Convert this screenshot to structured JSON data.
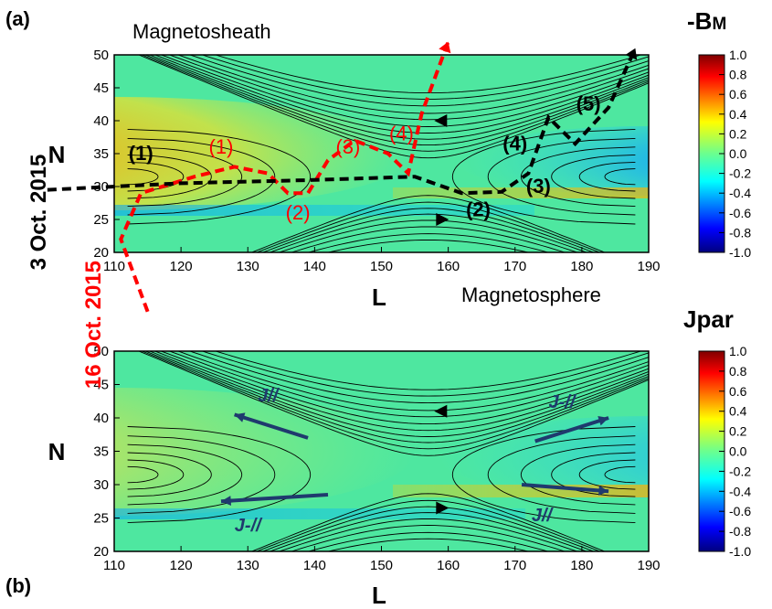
{
  "panels": [
    {
      "id": "a",
      "panel_label": "(a)",
      "xlabel": "L",
      "ylabel": "N",
      "colorbar_label": "-B",
      "colorbar_label_sub": "M",
      "region_top": "Magnetosheath",
      "region_bottom": "Magnetosphere"
    },
    {
      "id": "b",
      "panel_label": "(b)",
      "xlabel": "L",
      "ylabel": "N",
      "colorbar_label": "Jpar"
    }
  ],
  "events": [
    {
      "date": "3 Oct. 2015",
      "color": "#000000"
    },
    {
      "date": "16 Oct. 2015",
      "color": "#ff0000"
    }
  ],
  "current_labels": [
    "J//",
    "J-//",
    "J-//",
    "J//"
  ],
  "colors": {
    "red_track": "#ff0000",
    "black_track": "#000000",
    "arrow_navy": "#1f3a6e"
  },
  "chart_data": [
    {
      "type": "heatmap",
      "panel": "a",
      "x_range": [
        110,
        190
      ],
      "y_range": [
        20,
        50
      ],
      "x_ticks": [
        110,
        120,
        130,
        140,
        150,
        160,
        170,
        180,
        190
      ],
      "y_ticks": [
        20,
        25,
        30,
        35,
        40,
        45,
        50
      ],
      "colorbar_range": [
        -1.0,
        1.0
      ],
      "colorbar_ticks": [
        "1.0",
        "0.8",
        "0.6",
        "0.4",
        "0.2",
        "0.0",
        "-0.2",
        "-0.4",
        "-0.6",
        "-0.8",
        "-1.0"
      ],
      "colormap": "jet",
      "x_line": {
        "x": 157,
        "y": 31.5
      },
      "flow_arrows": [
        {
          "x": 159,
          "y": 40,
          "direction": "left"
        },
        {
          "x": 159,
          "y": 25,
          "direction": "right"
        }
      ],
      "tracks": [
        {
          "event": "16 Oct. 2015",
          "color": "#ff0000",
          "points": [
            [
              115,
              11
            ],
            [
              111,
              22
            ],
            [
              114,
              29
            ],
            [
              122,
              31.5
            ],
            [
              128,
              33
            ],
            [
              133,
              32
            ],
            [
              136,
              29
            ],
            [
              139,
              29
            ],
            [
              142,
              34
            ],
            [
              146,
              37
            ],
            [
              151,
              35
            ],
            [
              154,
              32
            ],
            [
              156,
              41
            ],
            [
              160,
              52
            ]
          ],
          "labels": [
            {
              "text": "(1)",
              "x": 126,
              "y": 35
            },
            {
              "text": "(2)",
              "x": 137.5,
              "y": 25
            },
            {
              "text": "(3)",
              "x": 145,
              "y": 35
            },
            {
              "text": "(4)",
              "x": 153,
              "y": 37
            }
          ]
        },
        {
          "event": "3 Oct. 2015",
          "color": "#000000",
          "points": [
            [
              100,
              29.5
            ],
            [
              120,
              30.5
            ],
            [
              140,
              31
            ],
            [
              155,
              31.5
            ],
            [
              162,
              29
            ],
            [
              168,
              29.2
            ],
            [
              172,
              32
            ],
            [
              175,
              40.5
            ],
            [
              179,
              36.5
            ],
            [
              184,
              42
            ],
            [
              188,
              51
            ]
          ],
          "labels": [
            {
              "text": "(1)",
              "x": 114,
              "y": 34
            },
            {
              "text": "(2)",
              "x": 164.5,
              "y": 25.5
            },
            {
              "text": "(3)",
              "x": 173.5,
              "y": 29
            },
            {
              "text": "(4)",
              "x": 170,
              "y": 35.5
            },
            {
              "text": "(5)",
              "x": 181,
              "y": 41.5
            }
          ]
        }
      ]
    },
    {
      "type": "heatmap",
      "panel": "b",
      "x_range": [
        110,
        190
      ],
      "y_range": [
        20,
        50
      ],
      "x_ticks": [
        110,
        120,
        130,
        140,
        150,
        160,
        170,
        180,
        190
      ],
      "y_ticks": [
        20,
        25,
        30,
        35,
        40,
        45,
        50
      ],
      "colorbar_range": [
        -1.0,
        1.0
      ],
      "colorbar_ticks": [
        "1.0",
        "0.8",
        "0.6",
        "0.4",
        "0.2",
        "0.0",
        "-0.2",
        "-0.4",
        "-0.6",
        "-0.8",
        "-1.0"
      ],
      "colormap": "jet",
      "x_line": {
        "x": 157,
        "y": 31.5
      },
      "flow_arrows": [
        {
          "x": 159,
          "y": 41,
          "direction": "left"
        },
        {
          "x": 159,
          "y": 26.5,
          "direction": "right"
        }
      ],
      "current_arrows": [
        {
          "label": "J//",
          "x1": 139,
          "y1": 37,
          "x2": 128,
          "y2": 40.5,
          "label_x": 133,
          "label_y": 42.5
        },
        {
          "label": "J-//",
          "x1": 173,
          "y1": 36.5,
          "x2": 184,
          "y2": 40,
          "label_x": 177,
          "label_y": 41.5
        },
        {
          "label": "J-//",
          "x1": 142,
          "y1": 28.5,
          "x2": 126,
          "y2": 27.5,
          "label_x": 130,
          "label_y": 23
        },
        {
          "label": "J//",
          "x1": 171,
          "y1": 30,
          "x2": 184,
          "y2": 29,
          "label_x": 174,
          "label_y": 24.5
        }
      ]
    }
  ]
}
